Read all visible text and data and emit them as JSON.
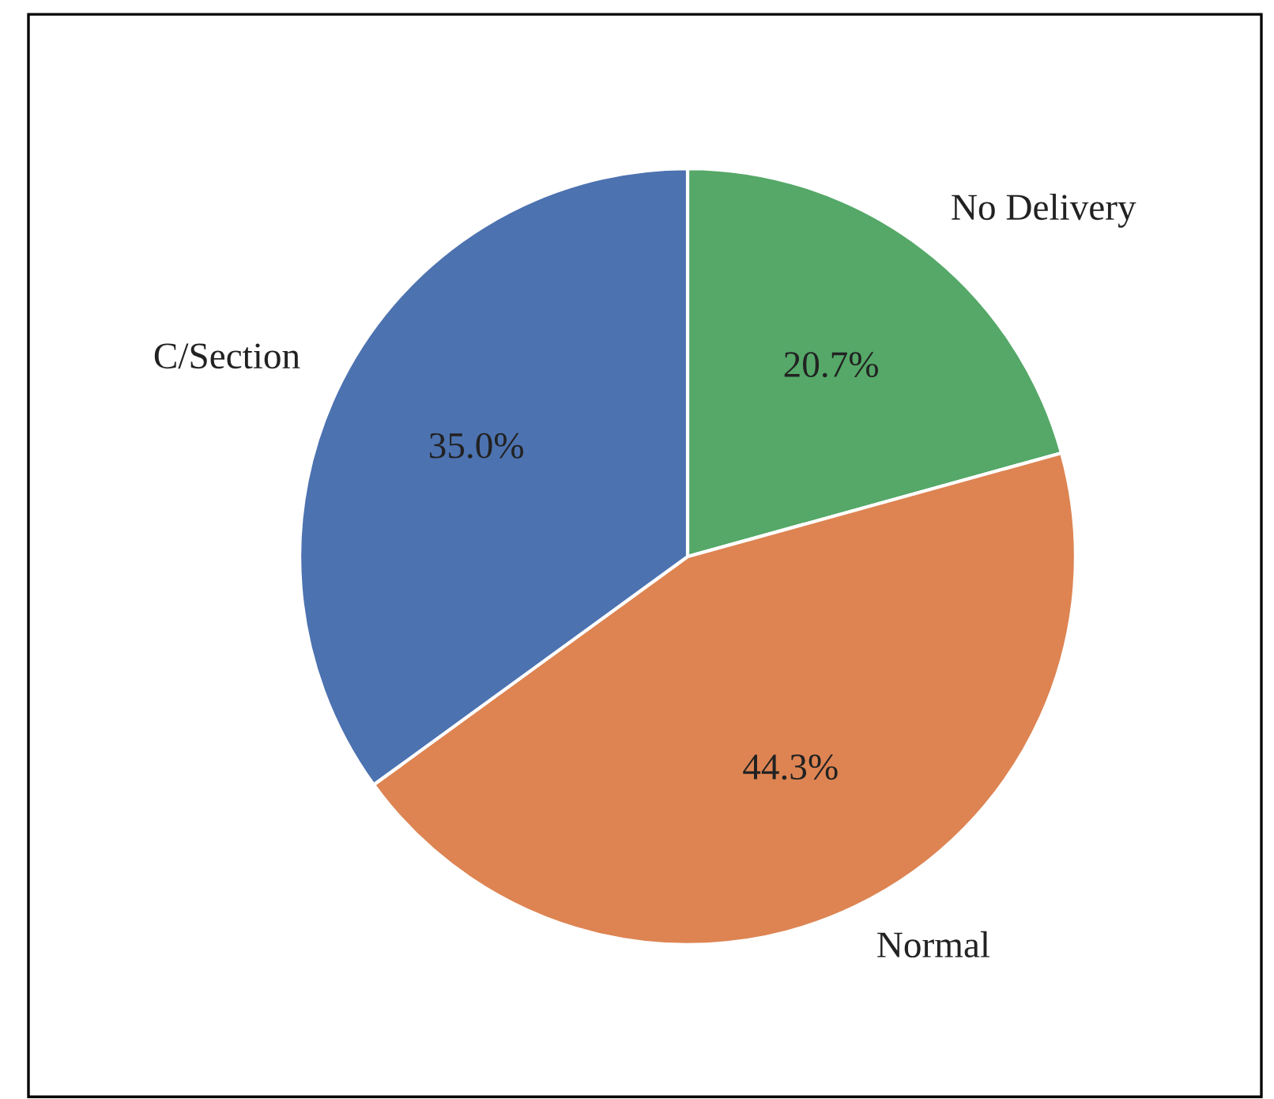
{
  "chart_data": {
    "type": "pie",
    "categories": [
      "No Delivery",
      "Normal",
      "C/Section"
    ],
    "values": [
      20.7,
      44.3,
      35.0
    ],
    "colors": [
      "#55a868",
      "#dd8452",
      "#4c72b0"
    ],
    "value_labels": [
      "20.7%",
      "44.3%",
      "35.0%"
    ]
  }
}
